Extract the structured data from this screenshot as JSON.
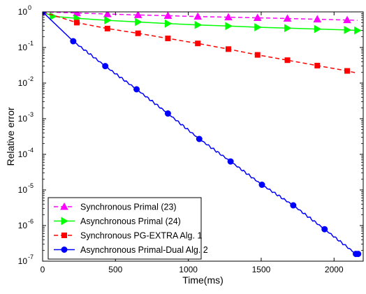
{
  "chart_data": {
    "type": "line",
    "title": "",
    "xlabel": "Time(ms)",
    "ylabel": "Relative error",
    "xlim": [
      0,
      2200
    ],
    "ylim": [
      1e-07,
      1
    ],
    "yscale": "log",
    "grid": false,
    "legend_position": "bottom-left",
    "x_ticks": [
      0,
      500,
      1000,
      1500,
      2000
    ],
    "x_tick_labels": [
      "0",
      "500",
      "1000",
      "1500",
      "2000"
    ],
    "y_ticks": [
      1,
      0.1,
      0.01,
      0.001,
      0.0001,
      1e-05,
      1e-06,
      1e-07
    ],
    "y_tick_labels": [
      {
        "base": "10",
        "exp": "0"
      },
      {
        "base": "10",
        "exp": "-1"
      },
      {
        "base": "10",
        "exp": "-2"
      },
      {
        "base": "10",
        "exp": "-3"
      },
      {
        "base": "10",
        "exp": "-4"
      },
      {
        "base": "10",
        "exp": "-5"
      },
      {
        "base": "10",
        "exp": "-6"
      },
      {
        "base": "10",
        "exp": "-7"
      }
    ],
    "series": [
      {
        "name": "Synchronous Primal (23)",
        "color": "#ff00ff",
        "line_style": "dashed",
        "marker": "triangle",
        "x": [
          0,
          235,
          445,
          655,
          860,
          1065,
          1275,
          1475,
          1680,
          1885,
          2090,
          2160
        ],
        "y": [
          1.0,
          0.93,
          0.87,
          0.82,
          0.78,
          0.74,
          0.71,
          0.68,
          0.65,
          0.62,
          0.59,
          0.58
        ]
      },
      {
        "name": "Asynchronous Primal (24)",
        "color": "#00ff00",
        "line_style": "solid",
        "marker": "triangle-right",
        "x": [
          0,
          70,
          235,
          445,
          655,
          860,
          1065,
          1275,
          1475,
          1680,
          1885,
          2090,
          2160
        ],
        "y": [
          1.0,
          0.75,
          0.66,
          0.58,
          0.52,
          0.47,
          0.43,
          0.4,
          0.37,
          0.35,
          0.33,
          0.31,
          0.3
        ]
      },
      {
        "name": "Synchronous PG-EXTRA Alg. 1",
        "color": "#ff0000",
        "line_style": "dashed",
        "marker": "square",
        "x": [
          0,
          235,
          445,
          655,
          860,
          1065,
          1275,
          1475,
          1680,
          1885,
          2090,
          2160
        ],
        "y": [
          1.0,
          0.5,
          0.34,
          0.25,
          0.18,
          0.13,
          0.09,
          0.062,
          0.044,
          0.031,
          0.022,
          0.019
        ]
      },
      {
        "name": "Asynchronous Primal-Dual Alg. 2",
        "color": "#0000ff",
        "line_style": "solid",
        "marker": "circle",
        "x": [
          0,
          210,
          430,
          645,
          860,
          1075,
          1290,
          1505,
          1720,
          1935,
          2150,
          2165
        ],
        "y": [
          1.0,
          0.15,
          0.03,
          0.0067,
          0.0014,
          0.00027,
          6.3e-05,
          1.4e-05,
          3.7e-06,
          7.9e-07,
          1.6e-07,
          1.6e-07
        ]
      }
    ]
  }
}
